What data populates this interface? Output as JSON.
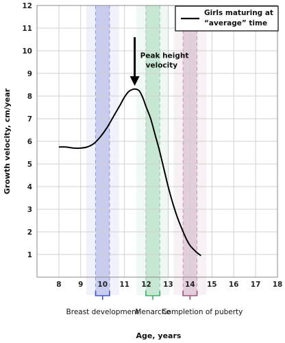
{
  "chart_data": {
    "type": "line",
    "title": "",
    "xlabel": "Age, years",
    "ylabel": "Growth velocity, cm/year",
    "xlim": [
      7,
      18
    ],
    "ylim": [
      0,
      12
    ],
    "x_ticks": [
      "8",
      "9",
      "10",
      "11",
      "12",
      "13",
      "14",
      "15",
      "16",
      "17",
      "18"
    ],
    "y_ticks": [
      "1",
      "2",
      "3",
      "4",
      "5",
      "6",
      "7",
      "8",
      "9",
      "10",
      "11",
      "12"
    ],
    "grid": true,
    "legend_position": "top-right",
    "series": [
      {
        "name": "Girls maturing at “average” time",
        "color": "#000000",
        "x": [
          8.0,
          8.3,
          8.7,
          9.0,
          9.3,
          9.6,
          9.9,
          10.2,
          10.5,
          10.8,
          11.0,
          11.2,
          11.4,
          11.55,
          11.7,
          11.85,
          12.0,
          12.2,
          12.4,
          12.6,
          12.8,
          13.0,
          13.2,
          13.4,
          13.6,
          13.8,
          14.0,
          14.3,
          14.5
        ],
        "y": [
          5.75,
          5.75,
          5.7,
          5.7,
          5.75,
          5.9,
          6.2,
          6.6,
          7.1,
          7.6,
          7.95,
          8.2,
          8.3,
          8.3,
          8.2,
          7.9,
          7.5,
          7.0,
          6.3,
          5.6,
          4.8,
          4.0,
          3.3,
          2.7,
          2.2,
          1.75,
          1.4,
          1.1,
          0.95
        ]
      }
    ],
    "annotations": [
      {
        "text_line1": "Peak height",
        "text_line2": "velocity",
        "x": 11.5,
        "y": 8.3
      }
    ],
    "bands": [
      {
        "label": "Breast development",
        "center": 10.0,
        "half_width": 0.75,
        "inner_half_width": 0.32,
        "color": "#3a4fc7"
      },
      {
        "label": "Menarche",
        "center": 12.3,
        "half_width": 0.75,
        "inner_half_width": 0.32,
        "color": "#3aaa6a"
      },
      {
        "label": "Completion of puberty",
        "center": 14.0,
        "half_width": 0.75,
        "inner_half_width": 0.32,
        "color": "#9a4f7a"
      }
    ]
  }
}
